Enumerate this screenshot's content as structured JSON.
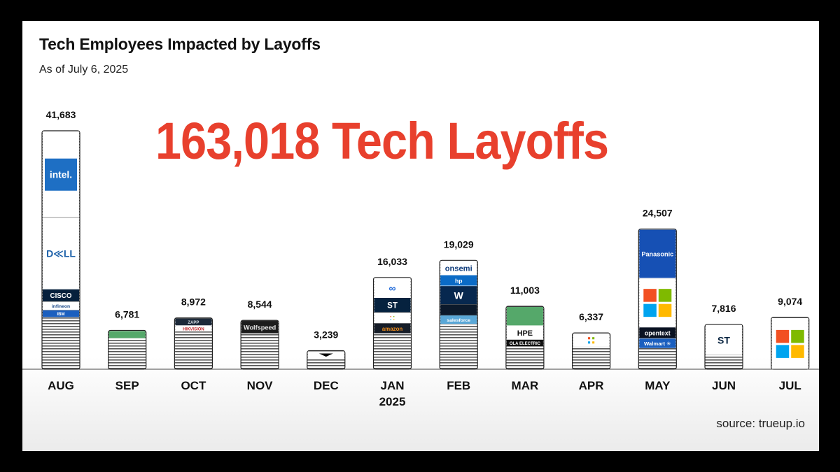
{
  "title": "Tech Employees Impacted by Layoffs",
  "subtitle": "As of July 6, 2025",
  "headline": "163,018 Tech Layoffs",
  "source": "source: trueup.io",
  "chart_data": {
    "type": "bar",
    "categories": [
      "AUG",
      "SEP",
      "OCT",
      "NOV",
      "DEC",
      "JAN",
      "FEB",
      "MAR",
      "APR",
      "MAY",
      "JUN",
      "JUL"
    ],
    "category_sublabels": [
      "",
      "",
      "",
      "",
      "",
      "2025",
      "",
      "",
      "",
      "",
      "",
      ""
    ],
    "values": [
      41683,
      6781,
      8972,
      8544,
      3239,
      16033,
      19029,
      11003,
      6337,
      24507,
      7816,
      9074
    ],
    "value_labels": [
      "41,683",
      "6,781",
      "8,972",
      "8,544",
      "3,239",
      "16,033",
      "19,029",
      "11,003",
      "6,337",
      "24,507",
      "7,816",
      "9,074"
    ],
    "ylim": [
      0,
      41683
    ],
    "grid": false,
    "legend": "none",
    "bar_segments": [
      [
        {
          "share": 0.362,
          "logo": "intel",
          "text": "intel.",
          "bg": "#ffffff",
          "fg": "#ffffff",
          "box": "#1e6fc4"
        },
        {
          "share": 0.3,
          "logo": "dell",
          "text": "D≪LL",
          "bg": "#ffffff",
          "fg": "#1a5fa8"
        },
        {
          "share": 0.052,
          "logo": "cisco",
          "text": "CISCO",
          "bg": "#06203c",
          "fg": "#ffffff"
        },
        {
          "share": 0.036,
          "logo": "infineon",
          "text": "infineon",
          "bg": "#ffffff",
          "fg": "#1b4a8a"
        },
        {
          "share": 0.03,
          "logo": "ibm",
          "text": "IBM",
          "bg": "#1b5fbf",
          "fg": "#ffffff"
        }
      ],
      [
        {
          "share": 0.19,
          "logo": "green-block",
          "text": "",
          "bg": "#55a86a"
        }
      ],
      [
        {
          "share": 0.14,
          "logo": "zapp",
          "text": "ZAPP",
          "bg": "#1d2a3a",
          "fg": "#cfd6de"
        },
        {
          "share": 0.12,
          "logo": "hikvision",
          "text": "HIKVISION",
          "bg": "#ffffff",
          "fg": "#c0282d"
        }
      ],
      [
        {
          "share": 0.26,
          "logo": "wolfspeed",
          "text": "Wolfspeed",
          "bg": "#1c1c1c",
          "fg": "#e6e6e6"
        }
      ],
      [
        {
          "share": 0.4,
          "logo": "v-mark",
          "text": "",
          "bg": "#ffffff",
          "fg": "#000000"
        }
      ],
      [
        {
          "share": 0.215,
          "logo": "meta",
          "text": "∞",
          "bg": "#ffffff",
          "fg": "#1a66d8"
        },
        {
          "share": 0.16,
          "logo": "st",
          "text": "ST",
          "bg": "#06223f",
          "fg": "#ffffff"
        },
        {
          "share": 0.12,
          "logo": "microsoft",
          "text": "",
          "bg": "#ffffff"
        },
        {
          "share": 0.11,
          "logo": "amazon",
          "text": "amazon",
          "bg": "#161d28",
          "fg": "#f08e1d"
        }
      ],
      [
        {
          "share": 0.13,
          "logo": "onsemi",
          "text": "onsemi",
          "bg": "#ffffff",
          "fg": "#0e3b7a"
        },
        {
          "share": 0.1,
          "logo": "hp",
          "text": "hp",
          "bg": "#0b6bc6",
          "fg": "#ffffff"
        },
        {
          "share": 0.17,
          "logo": "wayfair",
          "text": "W",
          "bg": "#07284f",
          "fg": "#ffffff"
        },
        {
          "share": 0.1,
          "logo": "dark-block",
          "text": "",
          "bg": "#0c1a2c"
        },
        {
          "share": 0.08,
          "logo": "salesforce",
          "text": "salesforce",
          "bg": "#5aa8d8",
          "fg": "#ffffff"
        }
      ],
      [
        {
          "share": 0.3,
          "logo": "green-block",
          "text": "",
          "bg": "#55a86a"
        },
        {
          "share": 0.22,
          "logo": "hpe",
          "text": "HPE",
          "bg": "#ffffff",
          "fg": "#111111"
        },
        {
          "share": 0.11,
          "logo": "ola-electric",
          "text": "OLA ELECTRIC",
          "bg": "#111111",
          "fg": "#ffffff"
        }
      ],
      [
        {
          "share": 0.37,
          "logo": "microsoft",
          "text": "",
          "bg": "#ffffff"
        }
      ],
      [
        {
          "share": 0.347,
          "logo": "panasonic",
          "text": "Panasonic",
          "bg": "#1650b4",
          "fg": "#ffffff"
        },
        {
          "share": 0.35,
          "logo": "microsoft",
          "text": "",
          "bg": "#ffffff"
        },
        {
          "share": 0.08,
          "logo": "opentext",
          "text": "opentext",
          "bg": "#0a1222",
          "fg": "#ffffff"
        },
        {
          "share": 0.07,
          "logo": "walmart",
          "text": "Walmart ✳",
          "bg": "#1a5fbf",
          "fg": "#ffffff"
        }
      ],
      [
        {
          "share": 0.67,
          "logo": "st",
          "text": "ST",
          "bg": "#ffffff",
          "fg": "#06223f"
        }
      ],
      [
        {
          "share": 1.0,
          "logo": "microsoft",
          "text": "",
          "bg": "#ffffff"
        }
      ]
    ],
    "colors": {
      "headline": "#e8402d",
      "bar_outline": "#222222",
      "stripe_dark": "#555555",
      "stripe_light": "#ffffff",
      "ms_red": "#f25022",
      "ms_green": "#7fba00",
      "ms_blue": "#00a4ef",
      "ms_yellow": "#ffb900"
    }
  }
}
